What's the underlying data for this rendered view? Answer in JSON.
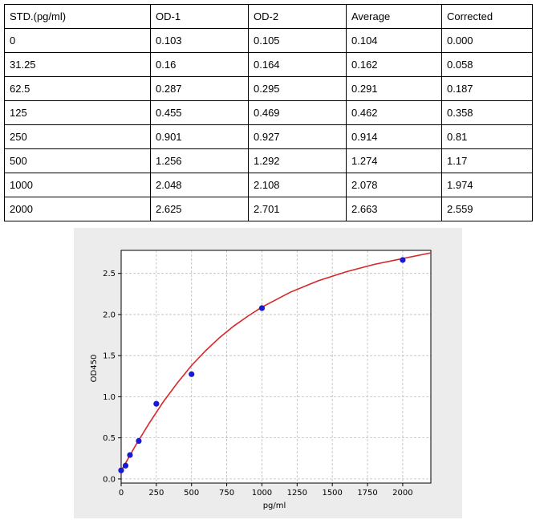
{
  "table": {
    "headers": [
      "STD.(pg/ml)",
      "OD-1",
      "OD-2",
      "Average",
      "Corrected"
    ],
    "rows": [
      [
        "0",
        "0.103",
        "0.105",
        "0.104",
        "0.000"
      ],
      [
        "31.25",
        "0.16",
        "0.164",
        "0.162",
        "0.058"
      ],
      [
        "62.5",
        "0.287",
        "0.295",
        "0.291",
        "0.187"
      ],
      [
        "125",
        "0.455",
        "0.469",
        "0.462",
        "0.358"
      ],
      [
        "250",
        "0.901",
        "0.927",
        "0.914",
        "0.81"
      ],
      [
        "500",
        "1.256",
        "1.292",
        "1.274",
        "1.17"
      ],
      [
        "1000",
        "2.048",
        "2.108",
        "2.078",
        "1.974"
      ],
      [
        "2000",
        "2.625",
        "2.701",
        "2.663",
        "2.559"
      ]
    ]
  },
  "chart_data": {
    "type": "scatter",
    "title": "",
    "xlabel": "pg/ml",
    "ylabel": "OD450",
    "xlim": [
      0,
      2200
    ],
    "ylim": [
      -0.05,
      2.78
    ],
    "xticks": [
      0,
      250,
      500,
      750,
      1000,
      1250,
      1500,
      1750,
      2000
    ],
    "xtick_labels": [
      "0",
      "250",
      "500",
      "750",
      "1000",
      "1250",
      "1500",
      "1750",
      "2000"
    ],
    "yticks": [
      0.0,
      0.5,
      1.0,
      1.5,
      2.0,
      2.5
    ],
    "ytick_labels": [
      "0.0",
      "0.5",
      "1.0",
      "1.5",
      "2.0",
      "2.5"
    ],
    "grid": true,
    "points": {
      "x": [
        0,
        31.25,
        62.5,
        125,
        250,
        500,
        1000,
        2000
      ],
      "y": [
        0.104,
        0.162,
        0.291,
        0.462,
        0.914,
        1.274,
        2.078,
        2.663
      ],
      "color": "#1a1ad0"
    },
    "fit_curve": {
      "color": "#d62728",
      "x": [
        0,
        50,
        100,
        150,
        200,
        300,
        400,
        500,
        600,
        700,
        800,
        900,
        1000,
        1200,
        1400,
        1600,
        1800,
        2000,
        2200
      ],
      "y": [
        0.1,
        0.25,
        0.4,
        0.54,
        0.68,
        0.94,
        1.17,
        1.38,
        1.56,
        1.72,
        1.86,
        1.98,
        2.09,
        2.27,
        2.41,
        2.52,
        2.61,
        2.68,
        2.75
      ]
    }
  }
}
